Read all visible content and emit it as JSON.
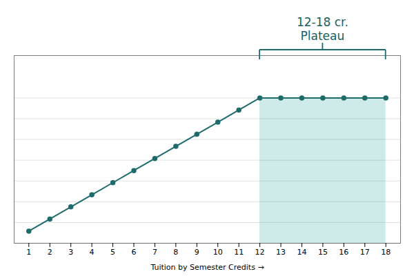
{
  "chart_data": {
    "type": "line",
    "x": [
      1,
      2,
      3,
      4,
      5,
      6,
      7,
      8,
      9,
      10,
      11,
      12,
      13,
      14,
      15,
      16,
      17,
      18
    ],
    "series": [
      {
        "values": [
          1,
          2,
          3,
          4,
          5,
          6,
          7,
          8,
          9,
          10,
          11,
          12,
          12,
          12,
          12,
          12,
          12,
          12
        ],
        "color": "#1e6b6b",
        "marker": "circle"
      }
    ],
    "xlabel": "Tuition by Semester Credits",
    "xlim": [
      0.3,
      18.7
    ],
    "xticks": [
      1,
      2,
      3,
      4,
      5,
      6,
      7,
      8,
      9,
      10,
      11,
      12,
      13,
      14,
      15,
      16,
      17,
      18
    ],
    "ylim": [
      0,
      15.5
    ],
    "yticks": [
      0,
      1.7142857142857142,
      3.4285714285714284,
      5.142857142857142,
      6.857142857142857,
      8.571428571428571,
      10.285714285714285,
      12
    ],
    "grid": true,
    "tick_labels": "x",
    "annotations": [
      {
        "text": "12-18 cr.\nPlateau",
        "x": [
          12,
          18
        ],
        "y": [
          0,
          12
        ],
        "color": "#1a5f5f",
        "fill": "#c5e8e5",
        "bracket_color": "#1e6b6b"
      }
    ]
  }
}
